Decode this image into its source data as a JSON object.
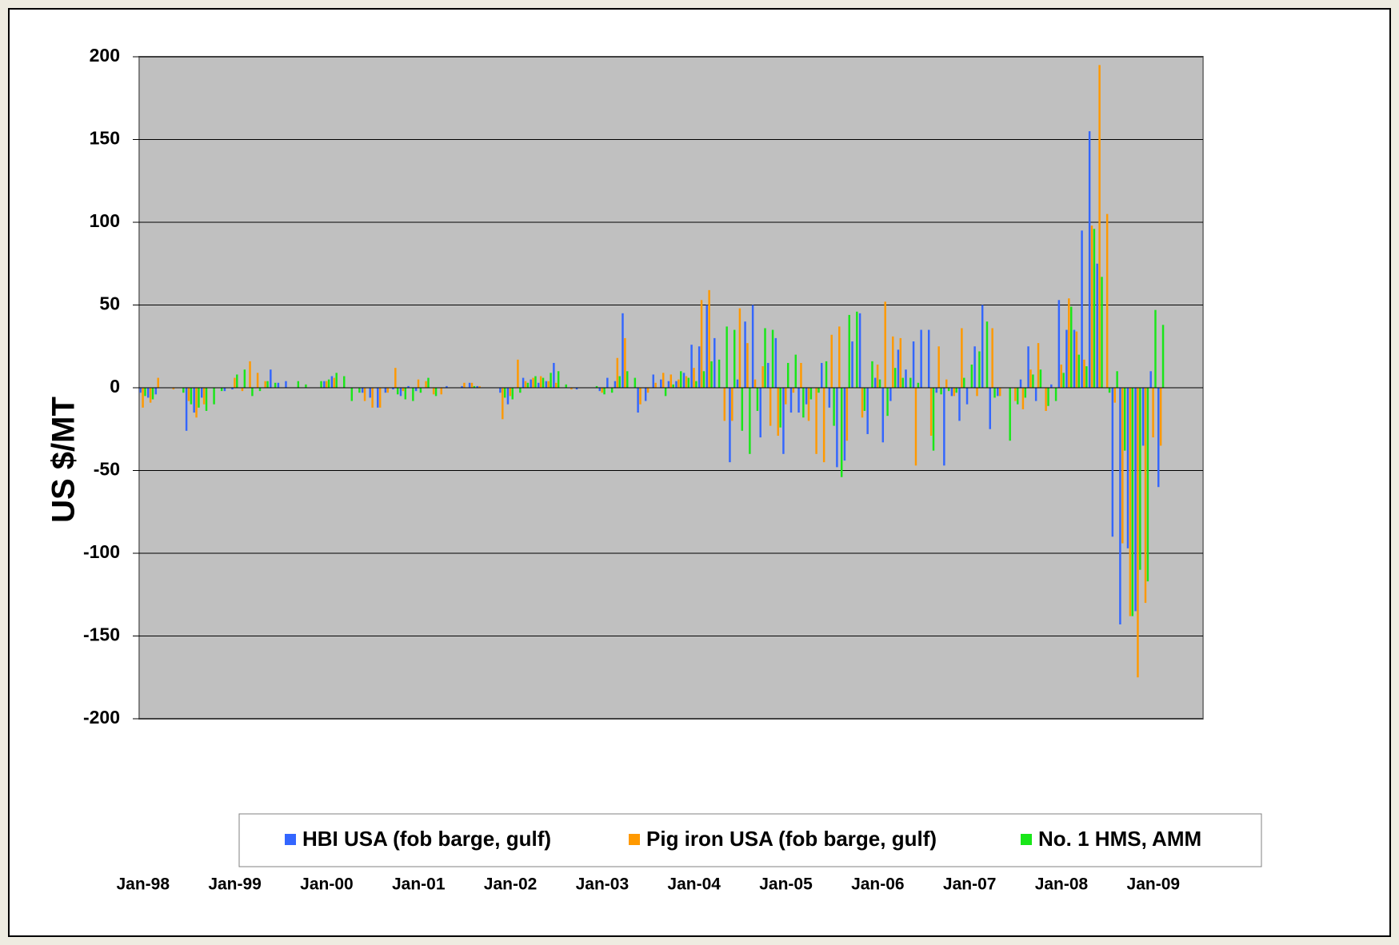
{
  "chart_data": {
    "type": "bar",
    "y_label": "US $/MT",
    "legend": "bottom",
    "grid": true,
    "ylim": [
      -200,
      200
    ],
    "yticks": [
      -200,
      -150,
      -100,
      -50,
      0,
      50,
      100,
      150,
      200
    ],
    "categories": [
      "Jan-98",
      null,
      null,
      null,
      null,
      null,
      null,
      null,
      null,
      null,
      null,
      null,
      "Jan-99",
      null,
      null,
      null,
      null,
      null,
      null,
      null,
      null,
      null,
      null,
      null,
      "Jan-00",
      null,
      null,
      null,
      null,
      null,
      null,
      null,
      null,
      null,
      null,
      null,
      "Jan-01",
      null,
      null,
      null,
      null,
      null,
      null,
      null,
      null,
      null,
      null,
      null,
      "Jan-02",
      null,
      null,
      null,
      null,
      null,
      null,
      null,
      null,
      null,
      null,
      null,
      "Jan-03",
      null,
      null,
      null,
      null,
      null,
      null,
      null,
      null,
      null,
      null,
      null,
      "Jan-04",
      null,
      null,
      null,
      null,
      null,
      null,
      null,
      null,
      null,
      null,
      null,
      "Jan-05",
      null,
      null,
      null,
      null,
      null,
      null,
      null,
      null,
      null,
      null,
      null,
      "Jan-06",
      null,
      null,
      null,
      null,
      null,
      null,
      null,
      null,
      null,
      null,
      null,
      "Jan-07",
      null,
      null,
      null,
      null,
      null,
      null,
      null,
      null,
      null,
      null,
      null,
      "Jan-08",
      null,
      null,
      null,
      null,
      null,
      null,
      null,
      null,
      null,
      null,
      null,
      "Jan-09",
      null,
      null,
      null,
      null,
      null,
      null
    ],
    "series": [
      {
        "name": "HBI USA (fob barge, gulf)",
        "color": "#3366ff",
        "values": [
          -3,
          -6,
          -4,
          0,
          0,
          0,
          -26,
          -15,
          -6,
          0,
          0,
          -2,
          -1,
          0,
          0,
          0,
          0,
          11,
          3,
          4,
          0,
          0,
          0,
          0,
          4,
          7,
          0,
          0,
          0,
          -3,
          -6,
          -12,
          -3,
          -1,
          -5,
          1,
          -2,
          0,
          0,
          0,
          1,
          0,
          1,
          3,
          1,
          0,
          0,
          -3,
          -10,
          0,
          6,
          5,
          3,
          4,
          15,
          0,
          0,
          -1,
          0,
          0,
          -2,
          6,
          4,
          45,
          0,
          -15,
          -8,
          8,
          5,
          4,
          4,
          9,
          26,
          25,
          50,
          30,
          0,
          -45,
          5,
          40,
          50,
          -30,
          15,
          30,
          -40,
          -15,
          -15,
          -10,
          0,
          15,
          -12,
          -48,
          -44,
          28,
          45,
          -28,
          6,
          -33,
          -8,
          23,
          11,
          28,
          35,
          35,
          -3,
          -47,
          -5,
          -20,
          -10,
          25,
          50,
          -25,
          -5,
          0,
          0,
          5,
          25,
          -8,
          0,
          2,
          53,
          35,
          35,
          95,
          155,
          75,
          0,
          -90,
          -143,
          -97,
          -135,
          -35,
          10,
          -60,
          null,
          null,
          null,
          null,
          null
        ]
      },
      {
        "name": "Pig iron USA (fob barge, gulf)",
        "color": "#ff9900",
        "values": [
          -12,
          -9,
          6,
          0,
          -1,
          0,
          -8,
          -18,
          -10,
          0,
          0,
          0,
          6,
          -2,
          16,
          9,
          4,
          0,
          0,
          0,
          0,
          0,
          0,
          0,
          4,
          6,
          0,
          0,
          0,
          -8,
          -12,
          -12,
          -3,
          12,
          -2,
          0,
          5,
          4,
          -4,
          -4,
          0,
          0,
          3,
          3,
          1,
          0,
          0,
          -19,
          -5,
          17,
          4,
          6,
          7,
          4,
          3,
          0,
          -1,
          0,
          0,
          0,
          -3,
          0,
          18,
          30,
          0,
          -10,
          -3,
          3,
          9,
          8,
          5,
          7,
          12,
          53,
          59,
          0,
          -20,
          -20,
          48,
          27,
          5,
          13,
          -23,
          -29,
          -10,
          -3,
          15,
          -20,
          -40,
          -45,
          32,
          37,
          -32,
          0,
          -18,
          0,
          14,
          52,
          31,
          30,
          0,
          -47,
          0,
          -29,
          25,
          5,
          -5,
          36,
          0,
          -5,
          0,
          36,
          -5,
          0,
          -8,
          -13,
          11,
          27,
          -14,
          0,
          14,
          54,
          34,
          17,
          98,
          195,
          105,
          -9,
          -94,
          -138,
          -175,
          -130,
          -30,
          -35,
          null,
          null,
          null,
          null,
          null
        ]
      },
      {
        "name": "No. 1 HMS, AMM",
        "color": "#19e619",
        "values": [
          -5,
          -7,
          0,
          0,
          0,
          -3,
          -10,
          -12,
          -14,
          -10,
          -2,
          0,
          8,
          11,
          -5,
          -2,
          4,
          3,
          0,
          0,
          4,
          2,
          0,
          4,
          5,
          9,
          7,
          -8,
          -3,
          0,
          0,
          0,
          0,
          -4,
          -7,
          -8,
          -3,
          6,
          -5,
          0,
          0,
          0,
          0,
          1,
          0,
          0,
          0,
          -6,
          -7,
          -3,
          3,
          7,
          6,
          9,
          10,
          2,
          0,
          0,
          0,
          1,
          -4,
          -3,
          7,
          10,
          6,
          0,
          0,
          0,
          -5,
          2,
          10,
          6,
          4,
          10,
          16,
          17,
          37,
          35,
          -26,
          -40,
          -14,
          36,
          35,
          -24,
          15,
          20,
          -18,
          -7,
          -3,
          16,
          -23,
          -54,
          44,
          46,
          -14,
          16,
          5,
          -17,
          12,
          6,
          6,
          3,
          0,
          -38,
          -4,
          -2,
          -3,
          6,
          14,
          22,
          40,
          -6,
          0,
          -32,
          -10,
          -6,
          8,
          11,
          -11,
          -8,
          9,
          49,
          20,
          13,
          96,
          67,
          -3,
          10,
          -38,
          -138,
          -110,
          -117,
          47,
          38,
          null,
          null,
          null,
          null,
          null
        ]
      }
    ]
  }
}
